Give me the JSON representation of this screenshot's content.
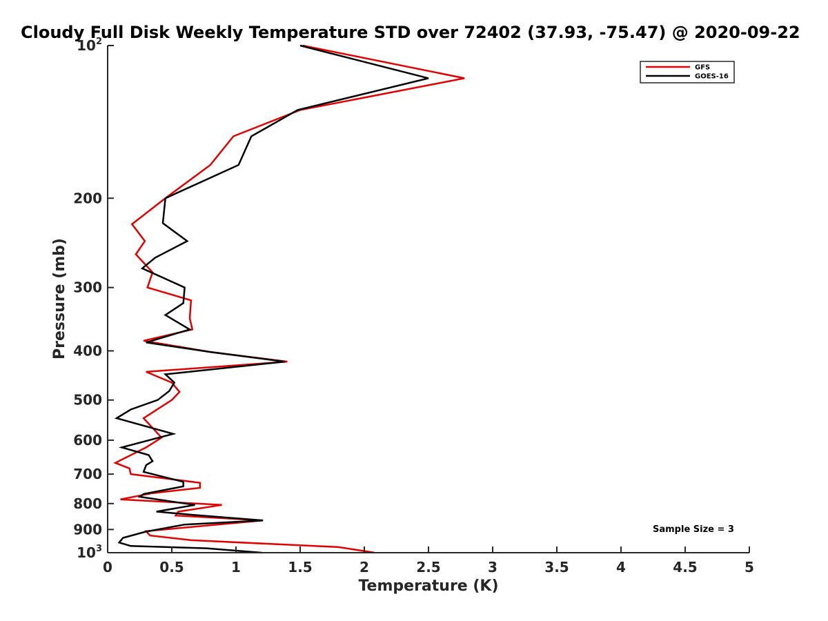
{
  "chart_data": {
    "type": "line",
    "title": "Cloudy Full Disk Weekly Temperature STD over 72402 (37.93, -75.47) @ 2020-09-22",
    "xlabel": "Temperature (K)",
    "ylabel": "Pressure (mb)",
    "xlim": [
      0,
      5
    ],
    "ylim": [
      100,
      1000
    ],
    "yscale": "log",
    "y_reversed": true,
    "grid": false,
    "legend_position": "top-right",
    "x_ticks": [
      "0",
      "0.5",
      "1",
      "1.5",
      "2",
      "2.5",
      "3",
      "3.5",
      "4",
      "4.5",
      "5"
    ],
    "y_ticks": [
      {
        "value": 100,
        "base": "10",
        "exp": "2"
      },
      {
        "value": 200,
        "label": "200"
      },
      {
        "value": 300,
        "label": "300"
      },
      {
        "value": 400,
        "label": "400"
      },
      {
        "value": 500,
        "label": "500"
      },
      {
        "value": 600,
        "label": "600"
      },
      {
        "value": 700,
        "label": "700"
      },
      {
        "value": 800,
        "label": "800"
      },
      {
        "value": 900,
        "label": "900"
      },
      {
        "value": 1000,
        "base": "10",
        "exp": "3"
      }
    ],
    "annotation": "Sample Size = 3",
    "series": [
      {
        "name": "GFS",
        "color": "#e00000",
        "points": [
          [
            1.52,
            100
          ],
          [
            2.78,
            116
          ],
          [
            1.5,
            134
          ],
          [
            0.98,
            151
          ],
          [
            0.8,
            172
          ],
          [
            0.45,
            200
          ],
          [
            0.19,
            225
          ],
          [
            0.29,
            243
          ],
          [
            0.22,
            258
          ],
          [
            0.35,
            280
          ],
          [
            0.31,
            300
          ],
          [
            0.65,
            318
          ],
          [
            0.64,
            345
          ],
          [
            0.66,
            363
          ],
          [
            0.28,
            382
          ],
          [
            0.8,
            402
          ],
          [
            1.4,
            420
          ],
          [
            0.3,
            440
          ],
          [
            0.5,
            462
          ],
          [
            0.56,
            482
          ],
          [
            0.5,
            500
          ],
          [
            0.28,
            543
          ],
          [
            0.42,
            593
          ],
          [
            0.3,
            620
          ],
          [
            0.06,
            665
          ],
          [
            0.17,
            682
          ],
          [
            0.18,
            700
          ],
          [
            0.72,
            728
          ],
          [
            0.72,
            745
          ],
          [
            0.35,
            763
          ],
          [
            0.1,
            785
          ],
          [
            0.89,
            805
          ],
          [
            0.55,
            830
          ],
          [
            0.53,
            845
          ],
          [
            1.21,
            864
          ],
          [
            0.82,
            882
          ],
          [
            0.3,
            907
          ],
          [
            0.33,
            925
          ],
          [
            0.65,
            945
          ],
          [
            1.8,
            975
          ],
          [
            2.08,
            1000
          ]
        ]
      },
      {
        "name": "GOES-16",
        "color": "#000000",
        "points": [
          [
            1.5,
            100
          ],
          [
            2.5,
            116
          ],
          [
            1.48,
            134
          ],
          [
            1.12,
            151
          ],
          [
            1.02,
            172
          ],
          [
            0.45,
            200
          ],
          [
            0.43,
            224
          ],
          [
            0.62,
            243
          ],
          [
            0.37,
            262
          ],
          [
            0.27,
            275
          ],
          [
            0.6,
            300
          ],
          [
            0.59,
            322
          ],
          [
            0.45,
            340
          ],
          [
            0.64,
            363
          ],
          [
            0.3,
            385
          ],
          [
            0.8,
            402
          ],
          [
            1.38,
            420
          ],
          [
            0.45,
            445
          ],
          [
            0.52,
            462
          ],
          [
            0.48,
            480
          ],
          [
            0.39,
            500
          ],
          [
            0.18,
            522
          ],
          [
            0.07,
            543
          ],
          [
            0.51,
            583
          ],
          [
            0.11,
            620
          ],
          [
            0.32,
            642
          ],
          [
            0.35,
            660
          ],
          [
            0.3,
            672
          ],
          [
            0.28,
            693
          ],
          [
            0.59,
            725
          ],
          [
            0.59,
            740
          ],
          [
            0.28,
            766
          ],
          [
            0.25,
            776
          ],
          [
            0.68,
            805
          ],
          [
            0.38,
            830
          ],
          [
            0.66,
            842
          ],
          [
            1.21,
            864
          ],
          [
            0.6,
            880
          ],
          [
            0.29,
            910
          ],
          [
            0.12,
            935
          ],
          [
            0.09,
            955
          ],
          [
            0.18,
            970
          ],
          [
            0.77,
            980
          ],
          [
            1.2,
            1000
          ]
        ]
      }
    ]
  }
}
